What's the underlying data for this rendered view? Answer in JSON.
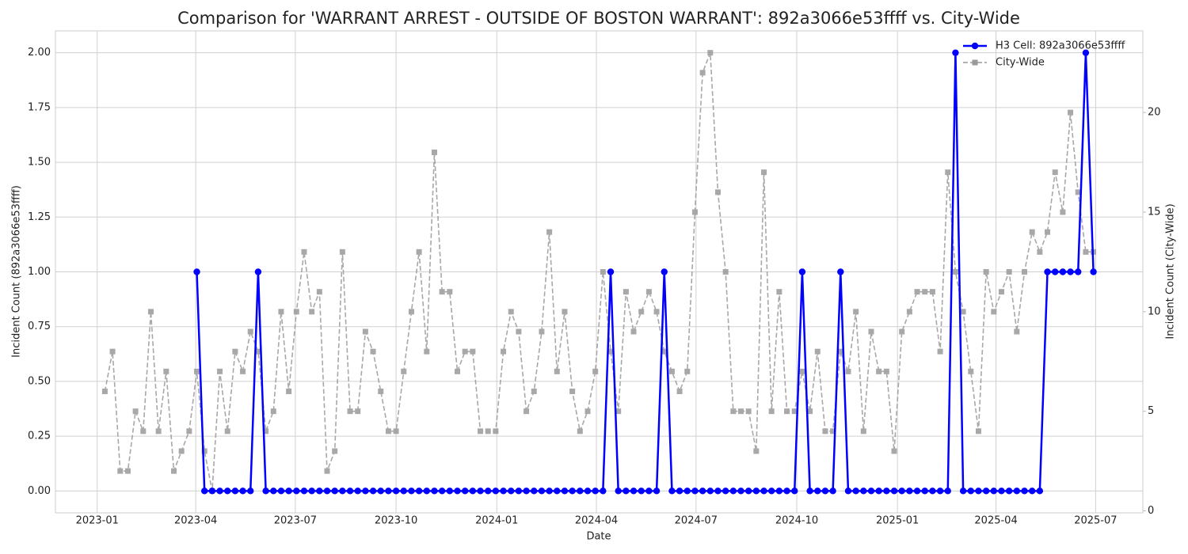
{
  "chart_data": {
    "type": "line",
    "title": "Comparison for 'WARRANT ARREST - OUTSIDE OF BOSTON WARRANT': 892a3066e53ffff vs. City-Wide",
    "x_label": "Date",
    "y_label": "Incident Count (892a3066e53ffff)",
    "y2_label": "Incident Count (City-Wide)",
    "xlim": [
      -6.45,
      135.45
    ],
    "xticks": [
      {
        "value": -1,
        "label": "2023-01"
      },
      {
        "value": 11.857,
        "label": "2023-04"
      },
      {
        "value": 24.857,
        "label": "2023-07"
      },
      {
        "value": 38,
        "label": "2023-10"
      },
      {
        "value": 51.143,
        "label": "2024-01"
      },
      {
        "value": 64.143,
        "label": "2024-04"
      },
      {
        "value": 77.143,
        "label": "2024-07"
      },
      {
        "value": 90.286,
        "label": "2024-10"
      },
      {
        "value": 103.429,
        "label": "2025-01"
      },
      {
        "value": 116.286,
        "label": "2025-04"
      },
      {
        "value": 129.286,
        "label": "2025-07"
      }
    ],
    "ylim": [
      -0.1,
      2.1
    ],
    "yticks": [
      {
        "value": 0,
        "label": "0.00"
      },
      {
        "value": 0.25,
        "label": "0.25"
      },
      {
        "value": 0.5,
        "label": "0.50"
      },
      {
        "value": 0.75,
        "label": "0.75"
      },
      {
        "value": 1,
        "label": "1.00"
      },
      {
        "value": 1.25,
        "label": "1.25"
      },
      {
        "value": 1.5,
        "label": "1.50"
      },
      {
        "value": 1.75,
        "label": "1.75"
      },
      {
        "value": 2,
        "label": "2.00"
      }
    ],
    "y2lim": [
      -0.1,
      24.1
    ],
    "y2ticks": [
      0,
      5,
      10,
      15,
      20
    ],
    "grid": true,
    "legend": "upper right",
    "series": [
      {
        "name": "H3 Cell: 892a3066e53ffff",
        "color": "#0000ff",
        "marker": "circle",
        "linestyle": "solid",
        "values": [
          null,
          null,
          null,
          null,
          null,
          null,
          null,
          null,
          null,
          null,
          null,
          null,
          1,
          0,
          0,
          0,
          0,
          0,
          0,
          0,
          1,
          0,
          0,
          0,
          0,
          0,
          0,
          0,
          0,
          0,
          0,
          0,
          0,
          0,
          0,
          0,
          0,
          0,
          0,
          0,
          0,
          0,
          0,
          0,
          0,
          0,
          0,
          0,
          0,
          0,
          0,
          0,
          0,
          0,
          0,
          0,
          0,
          0,
          0,
          0,
          0,
          0,
          0,
          0,
          0,
          0,
          1,
          0,
          0,
          0,
          0,
          0,
          0,
          1,
          0,
          0,
          0,
          0,
          0,
          0,
          0,
          0,
          0,
          0,
          0,
          0,
          0,
          0,
          0,
          0,
          0,
          1,
          0,
          0,
          0,
          0,
          1,
          0,
          0,
          0,
          0,
          0,
          0,
          0,
          0,
          0,
          0,
          0,
          0,
          0,
          0,
          2,
          0,
          0,
          0,
          0,
          0,
          0,
          0,
          0,
          0,
          0,
          0,
          1,
          1,
          1,
          1,
          1,
          2,
          1
        ]
      },
      {
        "name": "City-Wide",
        "color": "#999999",
        "marker": "square",
        "linestyle": "dashed",
        "axis": "y2",
        "values": [
          6,
          8,
          2,
          2,
          5,
          4,
          10,
          4,
          7,
          2,
          3,
          4,
          7,
          3,
          1,
          7,
          4,
          8,
          7,
          9,
          8,
          4,
          5,
          10,
          6,
          10,
          13,
          10,
          11,
          2,
          3,
          13,
          5,
          5,
          9,
          8,
          6,
          4,
          4,
          7,
          10,
          13,
          8,
          18,
          11,
          11,
          7,
          8,
          8,
          4,
          4,
          4,
          8,
          10,
          9,
          5,
          6,
          9,
          14,
          7,
          10,
          6,
          4,
          5,
          7,
          12,
          8,
          5,
          11,
          9,
          10,
          11,
          10,
          8,
          7,
          6,
          7,
          15,
          22,
          23,
          16,
          12,
          5,
          5,
          5,
          3,
          17,
          5,
          11,
          5,
          5,
          7,
          5,
          8,
          4,
          4,
          8,
          7,
          10,
          4,
          9,
          7,
          7,
          3,
          9,
          10,
          11,
          11,
          11,
          8,
          17,
          12,
          10,
          7,
          4,
          12,
          10,
          11,
          12,
          9,
          12,
          14,
          13,
          14,
          17,
          15,
          20,
          16,
          13,
          13
        ]
      }
    ]
  }
}
